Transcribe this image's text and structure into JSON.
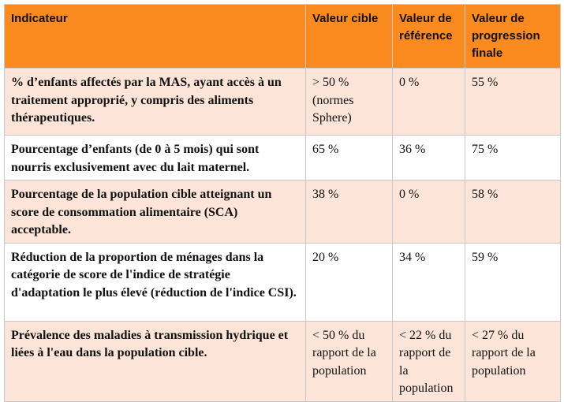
{
  "colors": {
    "header_bg": "#fb8a1f",
    "row_tint": "#fce5d8",
    "row_plain": "#ffffff",
    "border": "#c9c9c9"
  },
  "table": {
    "headers": {
      "indicator": "Indicateur",
      "target": "Valeur cible",
      "reference": "Valeur de référence",
      "final": "Valeur de progression finale"
    },
    "rows": [
      {
        "indicator": "% d’enfants affectés par la MAS, ayant accès à un traitement approprié, y compris des aliments thérapeutiques.",
        "target": "> 50 % (normes Sphere)",
        "reference": "0 %",
        "final": "55 %"
      },
      {
        "indicator": "Pourcentage d’enfants (de 0 à 5 mois) qui sont nourris exclusivement avec du lait maternel.",
        "target": "65 %",
        "reference": "36 %",
        "final": "75 %"
      },
      {
        "indicator": "Pourcentage de la population cible atteignant un score de consommation alimentaire (SCA) acceptable.",
        "target": "38 %",
        "reference": "0 %",
        "final": "58 %"
      },
      {
        "indicator": "Réduction de la proportion de ménages dans la catégorie de score de l'indice de stratégie d'adaptation le plus élevé (réduction de l'indice CSI).",
        "target": "20 %",
        "reference": "34 %",
        "final": "59 %"
      },
      {
        "indicator": "Prévalence des maladies à transmission hydrique et liées à l'eau dans la population cible.",
        "target": "< 50 % du rapport de la population",
        "reference": "< 22 % du rapport de la population",
        "final": "< 27 % du rapport de la population"
      }
    ]
  }
}
